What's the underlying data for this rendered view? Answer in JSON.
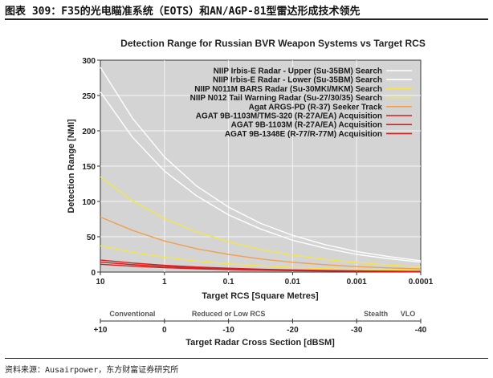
{
  "header": {
    "caption": "图表 309：F35的光电瞄准系统（EOTS）和AN/AGP-81型雷达形成技术领先"
  },
  "footer": {
    "source": "资料来源：Ausairpower，东方财富证券研究所"
  },
  "colors": {
    "plot_bg": "#d4d4d4",
    "grid": "#f4f4f4",
    "white": "#ffffff",
    "yellow": "#f2e64a",
    "orange": "#f0a050",
    "red": "#d42020"
  },
  "chart_data": {
    "type": "line",
    "title": "Detection Range for Russian BVR Weapon Systems vs Target RCS",
    "xlabel": "Target RCS [Square Metres]",
    "ylabel": "Detection Range [NMI]",
    "x_scale": "log",
    "x_reversed": true,
    "xlim": [
      10,
      0.0001
    ],
    "ylim": [
      0,
      300
    ],
    "grid": true,
    "legend_position": "top-right",
    "x_ticks": [
      {
        "value": 10,
        "label": "10"
      },
      {
        "value": 1,
        "label": "1"
      },
      {
        "value": 0.1,
        "label": "0.1"
      },
      {
        "value": 0.01,
        "label": "0.01"
      },
      {
        "value": 0.001,
        "label": "0.001"
      },
      {
        "value": 0.0001,
        "label": "0.0001"
      }
    ],
    "y_ticks": [
      0,
      50,
      100,
      150,
      200,
      250,
      300
    ],
    "x": [
      10,
      3.162,
      1,
      0.3162,
      0.1,
      0.03162,
      0.01,
      0.003162,
      0.001,
      0.0003162,
      0.0001
    ],
    "series": [
      {
        "name": "NIIP Irbis-E Radar - Upper (Su-35BM) Search",
        "color": "white",
        "values": [
          290,
          218,
          163,
          122,
          92,
          69,
          52,
          39,
          29,
          22,
          16
        ]
      },
      {
        "name": "NIIP Irbis-E Radar - Lower (Su-35BM) Search",
        "color": "white",
        "values": [
          255,
          191,
          143,
          108,
          81,
          61,
          45,
          34,
          25,
          19,
          14
        ]
      },
      {
        "name": "NIIP N011M BARS Radar (Su-30MKI/MKM) Search",
        "color": "yellow",
        "values": [
          135,
          101,
          76,
          57,
          43,
          32,
          24,
          18,
          13.5,
          10,
          7.6
        ]
      },
      {
        "name": "NIIP N012 Tail Warning Radar (Su-27/30/35) Search",
        "color": "yellow",
        "values": [
          37,
          28,
          21,
          15.6,
          11.7,
          8.8,
          6.6,
          4.9,
          3.7,
          2.8,
          2.1
        ]
      },
      {
        "name": "Agat ARGS-PD (R-37) Seeker Track",
        "color": "orange",
        "values": [
          78,
          59,
          44,
          33,
          25,
          18.5,
          13.9,
          10.4,
          7.8,
          5.9,
          4.4
        ]
      },
      {
        "name": "AGAT 9B-1103M/TMS-320 (R-27A/EA) Acquisition",
        "color": "red",
        "values": [
          17,
          12.8,
          9.6,
          7.2,
          5.4,
          4,
          3,
          2.3,
          1.7,
          1.3,
          1
        ]
      },
      {
        "name": "AGAT 9B-1103M (R-27A/EA) Acquisition",
        "color": "red",
        "values": [
          14,
          10.5,
          7.9,
          5.9,
          4.4,
          3.3,
          2.5,
          1.9,
          1.4,
          1.05,
          0.8
        ]
      },
      {
        "name": "AGAT 9B-1348E (R-77/R-77M) Acquisition",
        "color": "red",
        "values": [
          11,
          8.3,
          6.2,
          4.6,
          3.5,
          2.6,
          2,
          1.5,
          1.1,
          0.8,
          0.6
        ]
      }
    ],
    "secondary_axis": {
      "label": "Target Radar Cross Section [dBSM]",
      "ticks": [
        {
          "value": 10,
          "label": "+10"
        },
        {
          "value": 0,
          "label": "0"
        },
        {
          "value": -10,
          "label": "-10"
        },
        {
          "value": -20,
          "label": "-20"
        },
        {
          "value": -30,
          "label": "-30"
        },
        {
          "value": -40,
          "label": "-40"
        }
      ],
      "categories": [
        {
          "label": "Conventional",
          "db": 5
        },
        {
          "label": "Reduced or Low RCS",
          "db": -10
        },
        {
          "label": "Stealth",
          "db": -33
        },
        {
          "label": "VLO",
          "db": -38
        }
      ]
    }
  }
}
